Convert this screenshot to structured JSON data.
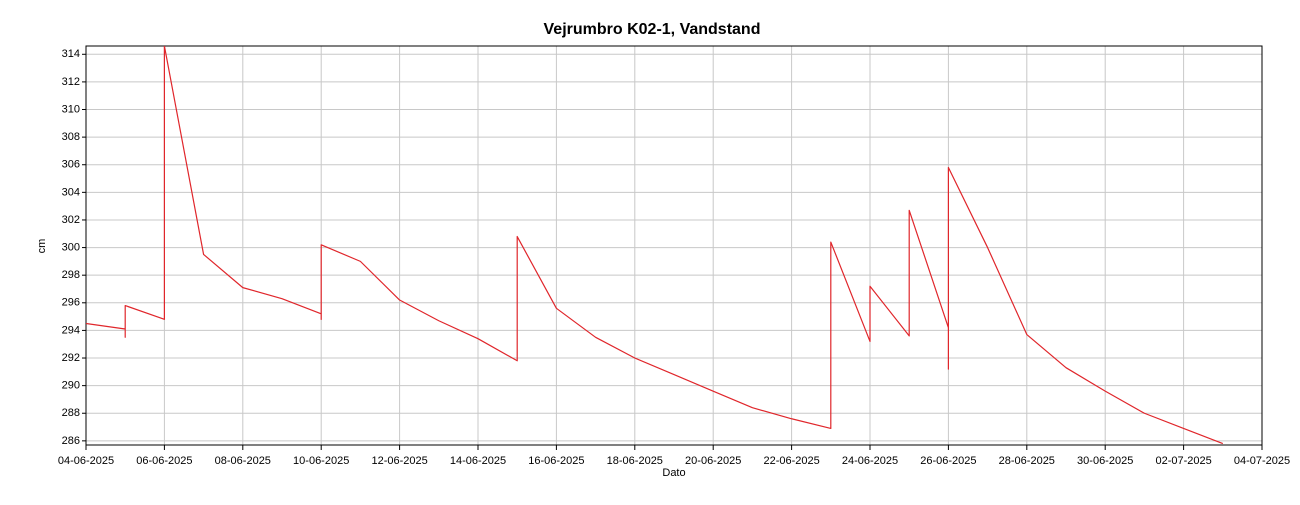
{
  "chart_data": {
    "type": "line",
    "title": "Vejrumbro K02-1, Vandstand",
    "x_label": "Dato",
    "y_label": "cm",
    "x": [
      "2025-06-04",
      "2025-06-05",
      "2025-06-05",
      "2025-06-05",
      "2025-06-06",
      "2025-06-06",
      "2025-06-07",
      "2025-06-08",
      "2025-06-09",
      "2025-06-10",
      "2025-06-10",
      "2025-06-10",
      "2025-06-11",
      "2025-06-12",
      "2025-06-13",
      "2025-06-14",
      "2025-06-15",
      "2025-06-15",
      "2025-06-16",
      "2025-06-17",
      "2025-06-18",
      "2025-06-19",
      "2025-06-20",
      "2025-06-21",
      "2025-06-22",
      "2025-06-23",
      "2025-06-23",
      "2025-06-24",
      "2025-06-24",
      "2025-06-24",
      "2025-06-24",
      "2025-06-25",
      "2025-06-25",
      "2025-06-25",
      "2025-06-25",
      "2025-06-26",
      "2025-06-26",
      "2025-06-26",
      "2025-06-27",
      "2025-06-28",
      "2025-06-29",
      "2025-06-30",
      "2025-07-01",
      "2025-07-02",
      "2025-07-03"
    ],
    "series": [
      {
        "name": "Vandstand",
        "color": "#e0262b",
        "values": [
          294.5,
          294.1,
          293.5,
          295.8,
          294.8,
          314.6,
          299.5,
          297.1,
          296.3,
          295.2,
          294.8,
          300.2,
          299.0,
          296.2,
          294.7,
          293.4,
          291.8,
          300.8,
          295.6,
          293.5,
          292.0,
          290.8,
          289.6,
          288.4,
          287.6,
          286.9,
          300.4,
          293.2,
          296.2,
          294.2,
          297.2,
          293.6,
          299.7,
          297.8,
          302.7,
          294.2,
          291.2,
          305.8,
          300.0,
          293.7,
          291.3,
          289.6,
          288.0,
          286.9,
          285.8
        ]
      }
    ],
    "xlim": [
      "2025-06-04",
      "2025-07-04"
    ],
    "xticks": [
      {
        "value": "2025-06-04",
        "label": "04-06-2025"
      },
      {
        "value": "2025-06-06",
        "label": "06-06-2025"
      },
      {
        "value": "2025-06-08",
        "label": "08-06-2025"
      },
      {
        "value": "2025-06-10",
        "label": "10-06-2025"
      },
      {
        "value": "2025-06-12",
        "label": "12-06-2025"
      },
      {
        "value": "2025-06-14",
        "label": "14-06-2025"
      },
      {
        "value": "2025-06-16",
        "label": "16-06-2025"
      },
      {
        "value": "2025-06-18",
        "label": "18-06-2025"
      },
      {
        "value": "2025-06-20",
        "label": "20-06-2025"
      },
      {
        "value": "2025-06-22",
        "label": "22-06-2025"
      },
      {
        "value": "2025-06-24",
        "label": "24-06-2025"
      },
      {
        "value": "2025-06-26",
        "label": "26-06-2025"
      },
      {
        "value": "2025-06-28",
        "label": "28-06-2025"
      },
      {
        "value": "2025-06-30",
        "label": "30-06-2025"
      },
      {
        "value": "2025-07-02",
        "label": "02-07-2025"
      },
      {
        "value": "2025-07-04",
        "label": "04-07-2025"
      }
    ],
    "ylim": [
      285.7,
      314.6
    ],
    "yticks": [
      286,
      288,
      290,
      292,
      294,
      296,
      298,
      300,
      302,
      304,
      306,
      308,
      310,
      312,
      314
    ],
    "grid": true
  }
}
